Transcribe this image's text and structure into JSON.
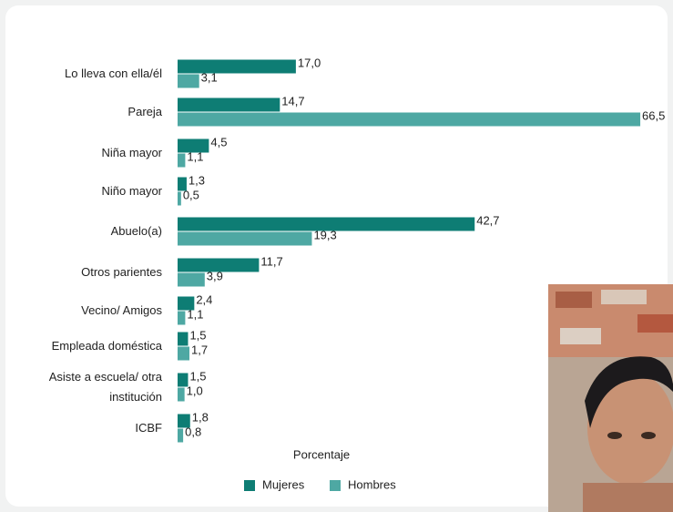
{
  "chart_data": {
    "type": "bar",
    "orientation": "horizontal",
    "categories": [
      "Lo lleva con ella/él",
      "Pareja",
      "Niña mayor",
      "Niño mayor",
      "Abuelo(a)",
      "Otros parientes",
      "Vecino/ Amigos",
      "Empleada doméstica",
      "Asiste a escuela/ otra institución",
      "ICBF"
    ],
    "series": [
      {
        "name": "Mujeres",
        "color": "#0e7d74",
        "values": [
          17.0,
          14.7,
          4.5,
          1.3,
          42.7,
          11.7,
          2.4,
          1.5,
          1.5,
          1.8
        ],
        "value_labels": [
          "17,0",
          "14,7",
          "4,5",
          "1,3",
          "42,7",
          "11,7",
          "2,4",
          "1,5",
          "1,5",
          "1,8"
        ]
      },
      {
        "name": "Hombres",
        "color": "#4ea8a3",
        "values": [
          3.1,
          66.5,
          1.1,
          0.5,
          19.3,
          3.9,
          1.1,
          1.7,
          1.0,
          0.8
        ],
        "value_labels": [
          "3,1",
          "66,5",
          "1,1",
          "0,5",
          "19,3",
          "3,9",
          "1,1",
          "1,7",
          "1,0",
          "0,8"
        ]
      }
    ],
    "xlabel": "Porcentaje"
  }
}
